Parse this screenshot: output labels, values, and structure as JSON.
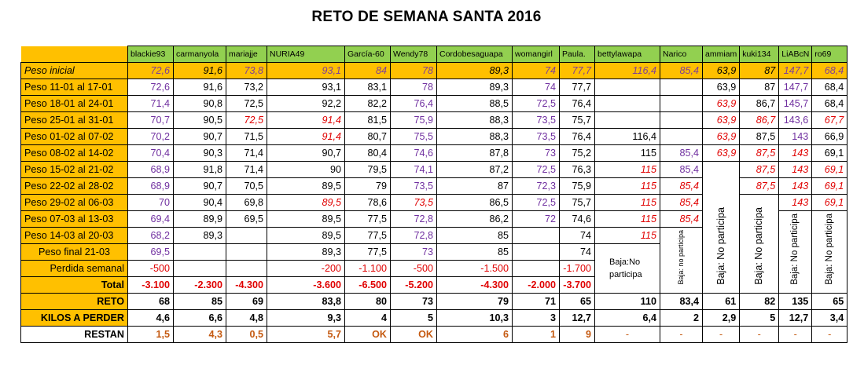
{
  "title": "RETO DE SEMANA SANTA 2016",
  "participants": [
    "blackie93",
    "carmanyola",
    "mariajje",
    "NURIA49",
    "García-60",
    "Wendy78",
    "Cordobesaguapa",
    "womangirl",
    "Paula.",
    "bettylawapa",
    "Narico",
    "ammiam",
    "kuki134",
    "LiABcN",
    "ro69"
  ],
  "rows": {
    "peso_inicial": {
      "label": "Peso inicial",
      "values": [
        "72,6",
        "91,6",
        "73,8",
        "93,1",
        "84",
        "78",
        "89,3",
        "74",
        "77,7",
        "116,4",
        "85,4",
        "63,9",
        "87",
        "147,7",
        "68,4"
      ]
    },
    "w1": {
      "label": "Peso 11-01    al  17-01",
      "values": [
        "72,6",
        "91,6",
        "73,2",
        "93,1",
        "83,1",
        "78",
        "89,3",
        "74",
        "77,7",
        "",
        "",
        "63,9",
        "87",
        "147,7",
        "68,4"
      ]
    },
    "w2": {
      "label": "Peso 18-01    al  24-01",
      "values": [
        "71,4",
        "90,8",
        "72,5",
        "92,2",
        "82,2",
        "76,4",
        "88,5",
        "72,5",
        "76,4",
        "",
        "",
        "63,9",
        "86,7",
        "145,7",
        "68,4"
      ]
    },
    "w3": {
      "label": "Peso 25-01    al  31-01",
      "values": [
        "70,7",
        "90,5",
        "72,5",
        "91,4",
        "81,5",
        "75,9",
        "88,3",
        "73,5",
        "75,7",
        "",
        "",
        "63,9",
        "86,7",
        "143,6",
        "67,7"
      ]
    },
    "w4": {
      "label": "Peso 01-02    al  07-02",
      "values": [
        "70,2",
        "90,7",
        "71,5",
        "91,4",
        "80,7",
        "75,5",
        "88,3",
        "73,5",
        "76,4",
        "116,4",
        "",
        "63,9",
        "87,5",
        "143",
        "66,9"
      ]
    },
    "w5": {
      "label": "Peso 08-02    al  14-02",
      "values": [
        "70,4",
        "90,3",
        "71,4",
        "90,7",
        "80,4",
        "74,6",
        "87,8",
        "73",
        "75,2",
        "115",
        "85,4",
        "63,9",
        "87,5",
        "143",
        "69,1"
      ]
    },
    "w6": {
      "label": "Peso 15-02    al  21-02",
      "values": [
        "68,9",
        "91,8",
        "71,4",
        "90",
        "79,5",
        "74,1",
        "87,2",
        "72,5",
        "76,3",
        "115",
        "85,4",
        "",
        "87,5",
        "143",
        "69,1"
      ]
    },
    "w7": {
      "label": "Peso 22-02    al  28-02",
      "values": [
        "68,9",
        "90,7",
        "70,5",
        "89,5",
        "79",
        "73,5",
        "87",
        "72,3",
        "75,9",
        "115",
        "85,4",
        "",
        "87,5",
        "143",
        "69,1"
      ]
    },
    "w8": {
      "label": "Peso 29-02    al  06-03",
      "values": [
        "70",
        "90,4",
        "69,8",
        "89,5",
        "78,6",
        "73,5",
        "86,5",
        "72,5",
        "75,7",
        "115",
        "85,4",
        "",
        "",
        "143",
        "69,1"
      ]
    },
    "w9": {
      "label": "Peso 07-03    al  13-03",
      "values": [
        "69,4",
        "89,9",
        "69,5",
        "89,5",
        "77,5",
        "72,8",
        "86,2",
        "72",
        "74,6",
        "115",
        "85,4",
        "",
        "",
        "",
        ""
      ]
    },
    "w10": {
      "label": "Peso 14-03    al  20-03",
      "values": [
        "68,2",
        "89,3",
        "",
        "89,5",
        "77,5",
        "72,8",
        "85",
        "",
        "74",
        "115",
        "",
        "",
        "",
        "",
        ""
      ]
    },
    "final": {
      "label": "Peso final 21-03",
      "values": [
        "69,5",
        "",
        "",
        "89,3",
        "77,5",
        "73",
        "85",
        "",
        "74"
      ]
    },
    "semanal": {
      "label": "Perdida semanal",
      "values": [
        "-500",
        "",
        "",
        "-200",
        "-1.100",
        "-500",
        "-1.500",
        "",
        "-1.700"
      ]
    },
    "total": {
      "label": "Total",
      "values": [
        "-3.100",
        "-2.300",
        "-4.300",
        "-3.600",
        "-6.500",
        "-5.200",
        "-4.300",
        "-2.000",
        "-3.700"
      ]
    },
    "reto": {
      "label": "RETO",
      "values": [
        "68",
        "85",
        "69",
        "83,8",
        "80",
        "73",
        "79",
        "71",
        "65",
        "110",
        "83,4",
        "61",
        "82",
        "135",
        "65"
      ]
    },
    "kilos": {
      "label": "KILOS A PERDER",
      "values": [
        "4,6",
        "6,6",
        "4,8",
        "9,3",
        "4",
        "5",
        "10,3",
        "3",
        "12,7",
        "6,4",
        "2",
        "2,9",
        "5",
        "12,7",
        "3,4"
      ]
    },
    "restan": {
      "label": "RESTAN",
      "values": [
        "1,5",
        "4,3",
        "0,5",
        "5,7",
        "OK",
        "OK",
        "6",
        "1",
        "9",
        "-",
        "-",
        "-",
        "-",
        "-",
        "-"
      ]
    }
  },
  "baja": {
    "bettylawapa": "Baja:No participa",
    "narico": "Baja: no participa",
    "ammiam": "Baja: No participa",
    "kuki134": "Baja: No participa",
    "liabcn": "Baja: No participa",
    "ro69": "Baja: No participa"
  },
  "colors": {
    "header_green": "#92d050",
    "label_orange": "#ffc000",
    "purple": "#7030a0",
    "red": "#e00000",
    "restan_brown": "#c55a11"
  }
}
